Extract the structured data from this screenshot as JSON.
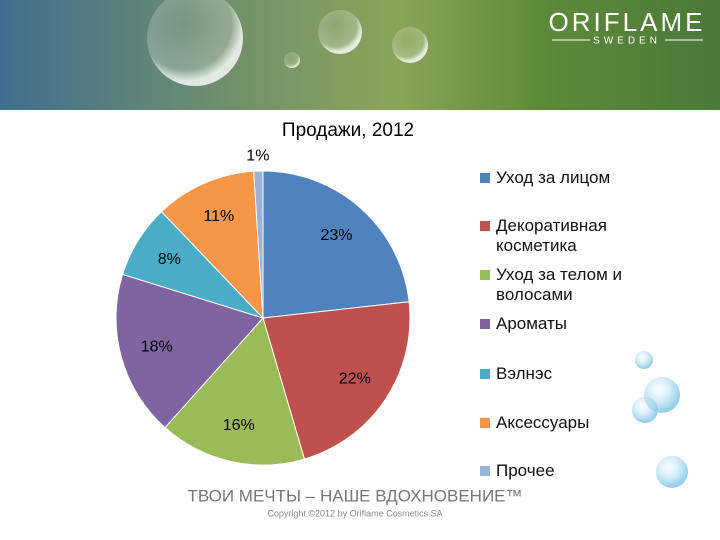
{
  "header": {
    "brand": "ORIFLAME",
    "sub": "SWEDEN"
  },
  "chart_data": {
    "type": "pie",
    "title": "Продажи, 2012",
    "categories": [
      "Уход за лицом",
      "Декоративная косметика",
      "Уход за телом и волосами",
      "Ароматы",
      "Вэлнэс",
      "Аксессуары",
      "Прочее"
    ],
    "values": [
      23,
      22,
      16,
      18,
      8,
      11,
      1
    ],
    "value_labels": [
      "23%",
      "22%",
      "16%",
      "18%",
      "8%",
      "11%",
      "1%"
    ],
    "colors": [
      "#4f81bd",
      "#c0504d",
      "#9bbb59",
      "#8064a2",
      "#4bacc6",
      "#f79646",
      "#9bb3d9"
    ],
    "legend": "right"
  },
  "footer": {
    "slogan": "ТВОИ МЕЧТЫ – НАШЕ ВДОХНОВЕНИЕ™",
    "copyright": "Copyright ©2012 by Oriflame Cosmetics SA"
  }
}
